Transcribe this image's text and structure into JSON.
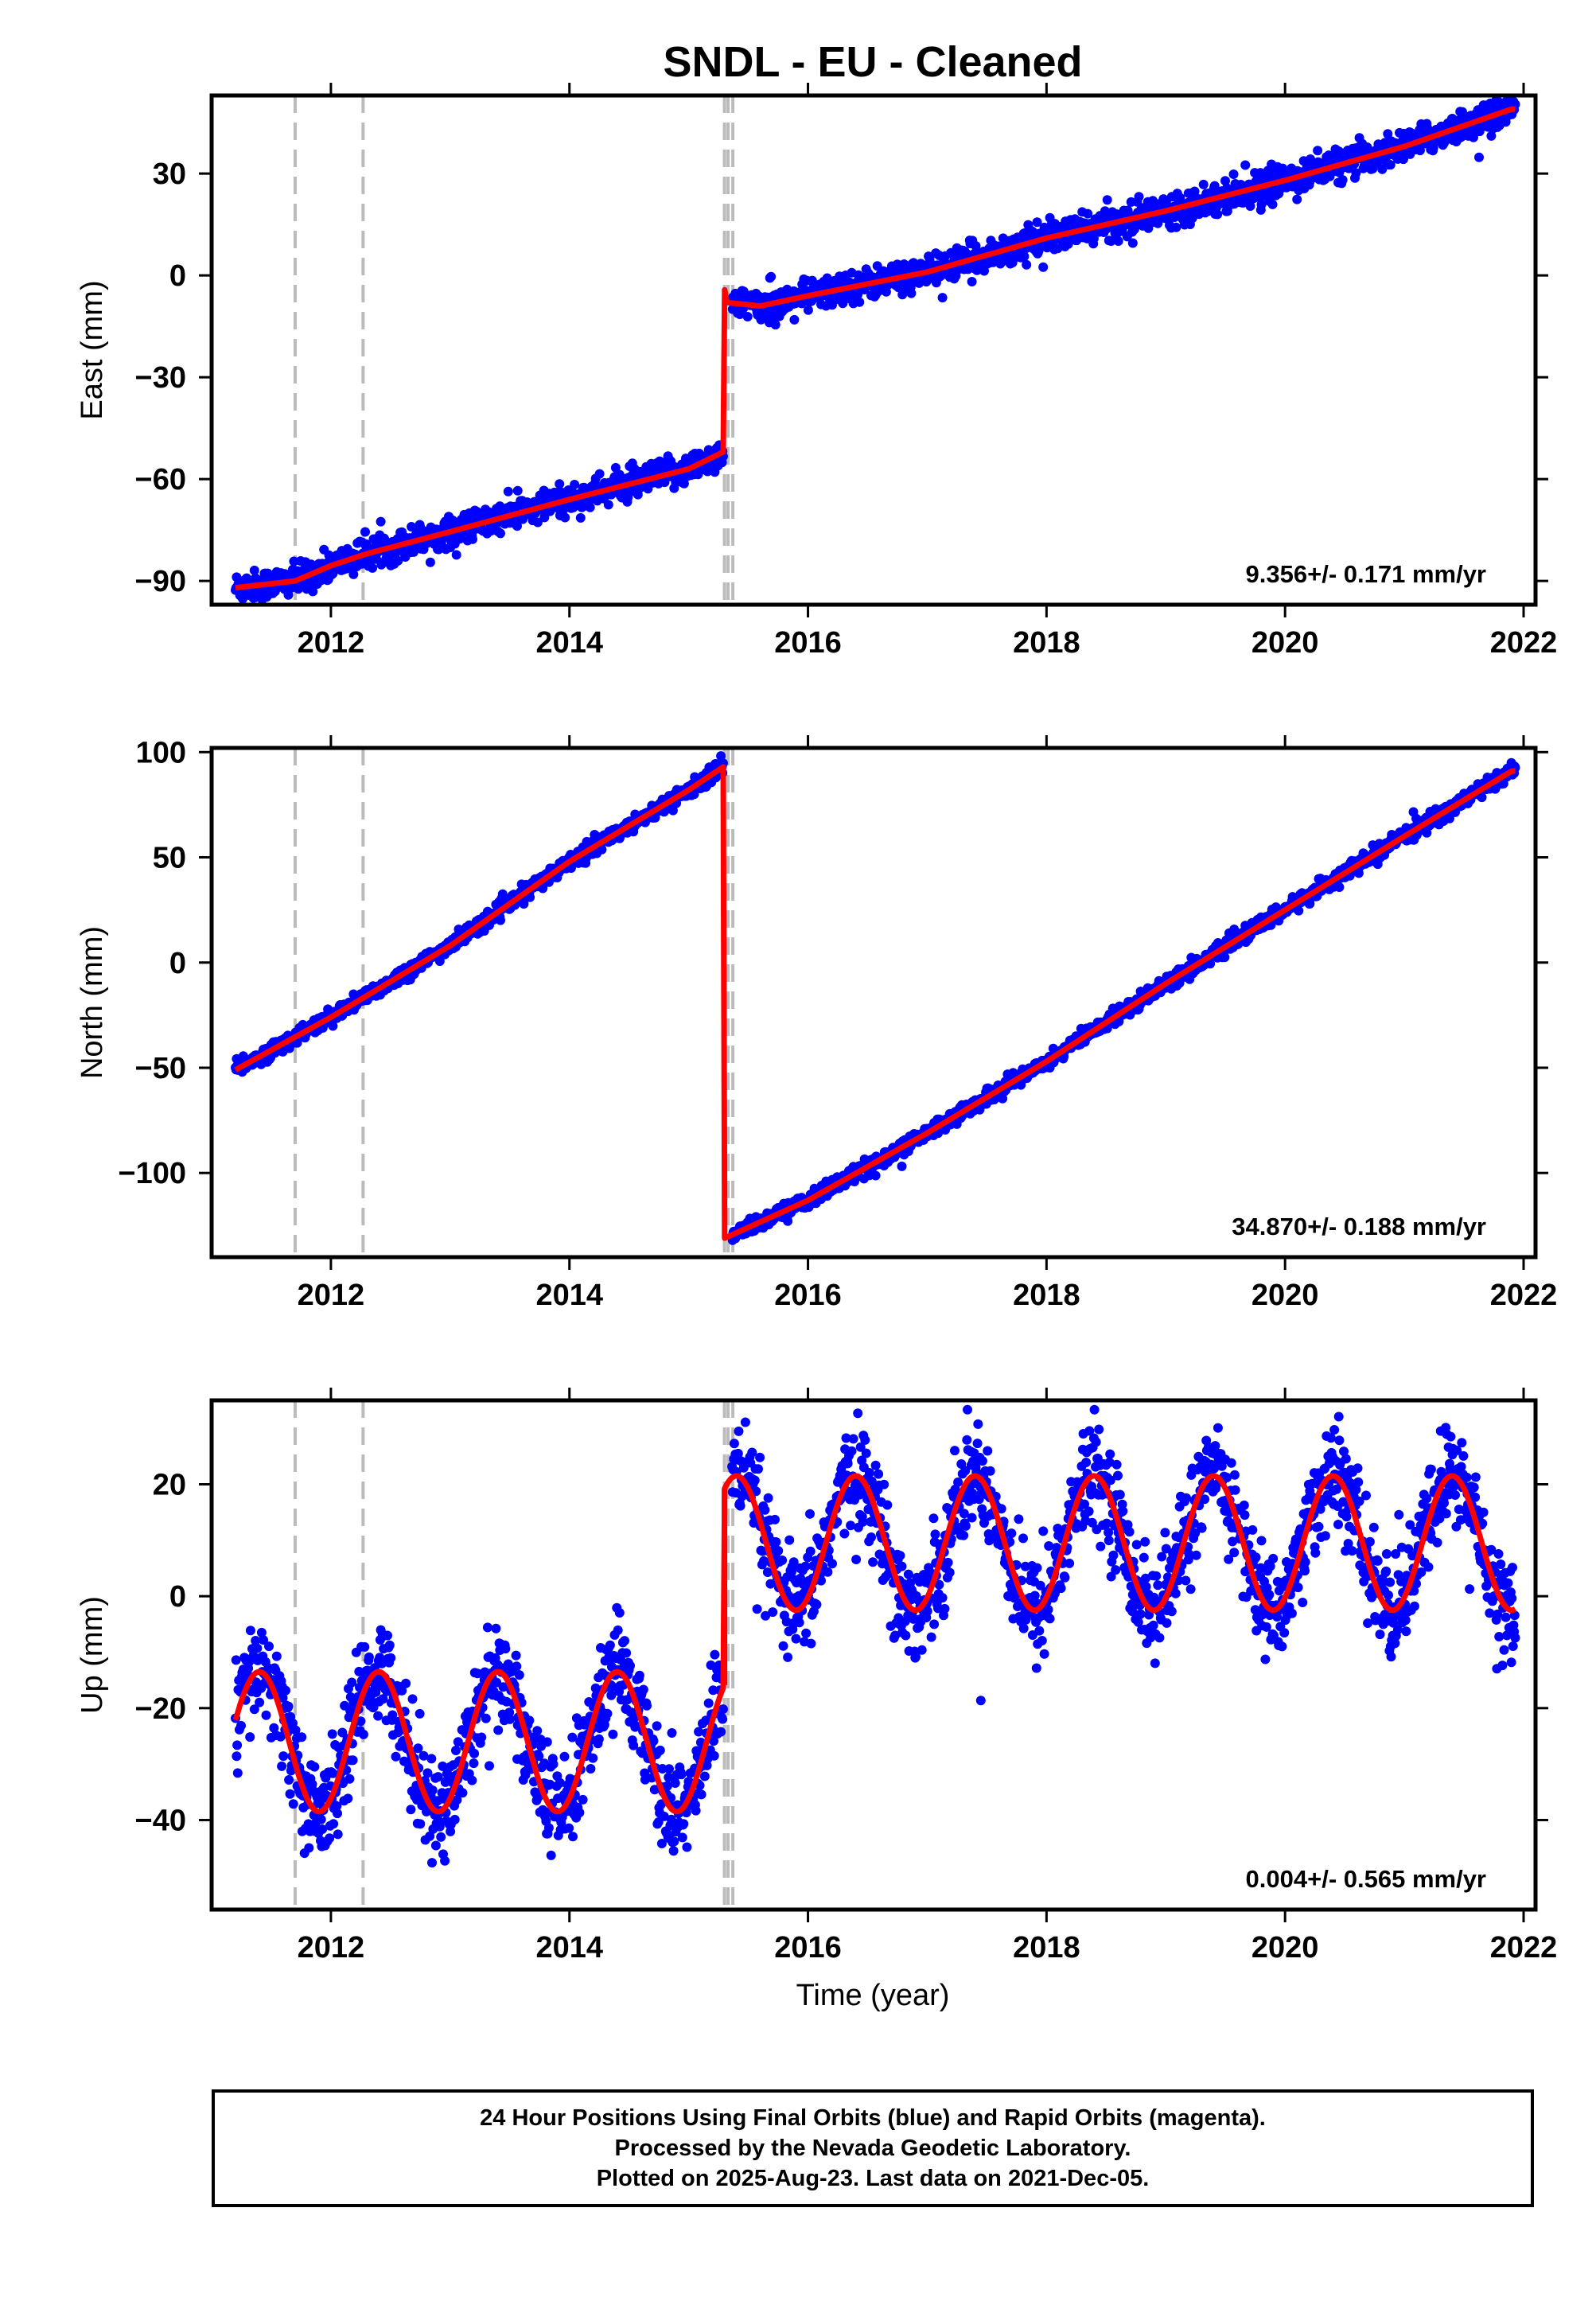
{
  "chart_data": {
    "title": "SNDL  - EU - Cleaned",
    "type": "scatter",
    "xlabel": "Time (year)",
    "xlim": [
      2011.0,
      2022.1
    ],
    "xticks": [
      2012,
      2014,
      2016,
      2018,
      2020,
      2022
    ],
    "event_lines_year": [
      2011.7,
      2012.27,
      2015.3,
      2015.33,
      2015.37
    ],
    "series_style": {
      "final_orbits_color": "#0000ff",
      "model_color": "#ff0000",
      "event_line_color": "#bbbbbb"
    },
    "panels": [
      {
        "ylabel": "East (mm)",
        "ylim": [
          -97,
          53
        ],
        "yticks": [
          -90,
          -60,
          -30,
          0,
          30
        ],
        "rate": "9.356+/- 0.171 mm/yr",
        "model_points": [
          [
            2011.2,
            -92
          ],
          [
            2011.7,
            -90
          ],
          [
            2012.0,
            -85.5
          ],
          [
            2012.3,
            -82
          ],
          [
            2013.0,
            -75.5
          ],
          [
            2014.0,
            -66
          ],
          [
            2015.0,
            -57
          ],
          [
            2015.29,
            -52
          ],
          [
            2015.3,
            -4
          ],
          [
            2015.32,
            -8
          ],
          [
            2015.6,
            -9
          ],
          [
            2016.0,
            -6
          ],
          [
            2017.0,
            1
          ],
          [
            2018.0,
            11
          ],
          [
            2019.0,
            19
          ],
          [
            2020.0,
            28
          ],
          [
            2021.0,
            38
          ],
          [
            2021.9,
            49
          ]
        ],
        "data_range_x": [
          2011.2,
          2021.93
        ],
        "scatter_noise_mm": 2.2
      },
      {
        "ylabel": "North (mm)",
        "ylim": [
          -140,
          102
        ],
        "yticks": [
          -100,
          -50,
          0,
          50,
          100
        ],
        "rate": "34.870+/- 0.188 mm/yr",
        "model_points": [
          [
            2011.2,
            -51
          ],
          [
            2012.0,
            -26
          ],
          [
            2013.0,
            8
          ],
          [
            2014.0,
            48
          ],
          [
            2015.0,
            82
          ],
          [
            2015.29,
            93
          ],
          [
            2015.3,
            -131
          ],
          [
            2016.0,
            -113
          ],
          [
            2017.0,
            -81
          ],
          [
            2018.0,
            -47
          ],
          [
            2019.0,
            -10
          ],
          [
            2020.0,
            25
          ],
          [
            2021.0,
            60
          ],
          [
            2021.9,
            91
          ]
        ],
        "data_range_x": [
          2011.2,
          2021.93
        ],
        "scatter_noise_mm": 1.8
      },
      {
        "ylabel": "Up (mm)",
        "ylim": [
          -56,
          35
        ],
        "yticks": [
          -40,
          -20,
          0,
          20
        ],
        "rate": "0.004+/- 0.565 mm/yr",
        "model": {
          "pre_break": {
            "x_start": 2011.2,
            "x_end": 2015.29,
            "mean": -26,
            "amplitude": 12.5,
            "peak_year_fraction": 0.4
          },
          "post_break": {
            "x_start": 2015.3,
            "x_end": 2021.93,
            "mean": 9.5,
            "amplitude": 12.0,
            "peak_year_fraction": 0.4
          }
        },
        "scatter_noise_mm": 4.5
      }
    ]
  },
  "footer": {
    "line1": "24 Hour Positions Using Final Orbits (blue) and Rapid Orbits (magenta).",
    "line2": "Processed by the Nevada Geodetic Laboratory.",
    "line3": "Plotted on 2025-Aug-23. Last data on 2021-Dec-05."
  }
}
